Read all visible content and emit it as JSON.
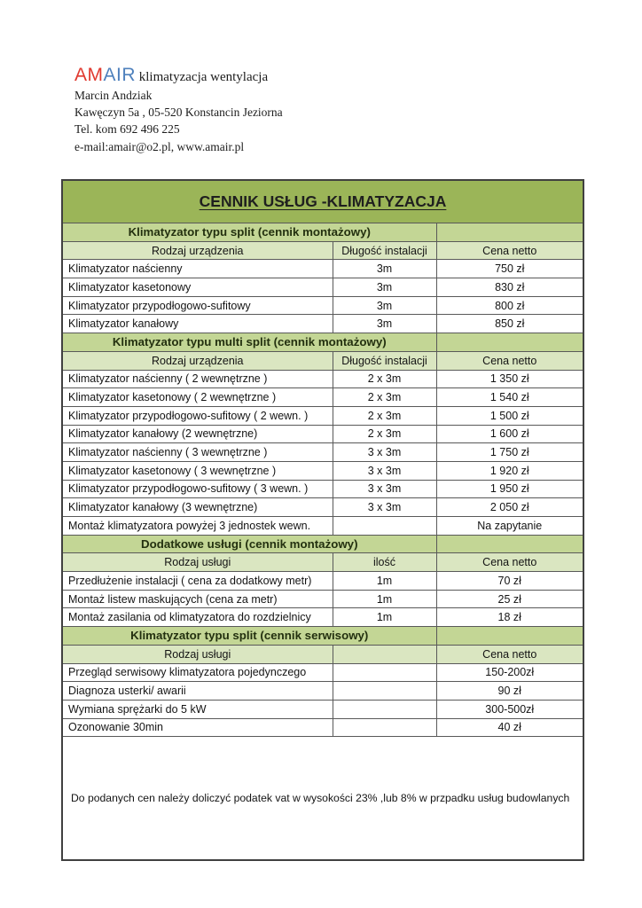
{
  "letterhead": {
    "logo": {
      "part1": "AM",
      "part2": "AIR",
      "suffix": " klimatyzacja wentylacja"
    },
    "lines": [
      "Marcin Andziak",
      "Kawęczyn 5a , 05-520 Konstancin Jeziorna",
      "Tel. kom 692 496 225",
      "e-mail:amair@o2.pl, www.amair.pl"
    ]
  },
  "colors": {
    "logo_red": "#e0392f",
    "logo_blue": "#4f81bd",
    "band_dark_green": "#9bb558",
    "band_section_green": "#c3d695",
    "band_header_green": "#dae6c1",
    "border": "#595959"
  },
  "table": {
    "title": "CENNIK USŁUG -KLIMATYZACJA",
    "sections": [
      {
        "header": "Klimatyzator typu split  (cennik montażowy)",
        "columns": [
          "Rodzaj urządzenia",
          "Długość instalacji",
          "Cena netto"
        ],
        "rows": [
          [
            "Klimatyzator naścienny",
            "3m",
            "750 zł"
          ],
          [
            "Klimatyzator kasetonowy",
            "3m",
            "830 zł"
          ],
          [
            "Klimatyzator przypodłogowo-sufitowy",
            "3m",
            "800 zł"
          ],
          [
            "Klimatyzator kanałowy",
            "3m",
            "850 zł"
          ]
        ]
      },
      {
        "header": "Klimatyzator typu multi split  (cennik montażowy)",
        "columns": [
          "Rodzaj urządzenia",
          "Długość instalacji",
          "Cena netto"
        ],
        "rows": [
          [
            "Klimatyzator naścienny ( 2 wewnętrzne )",
            "2 x 3m",
            "1 350 zł"
          ],
          [
            "Klimatyzator kasetonowy ( 2 wewnętrzne )",
            "2 x 3m",
            "1 540 zł"
          ],
          [
            "Klimatyzator przypodłogowo-sufitowy ( 2 wewn. )",
            "2 x 3m",
            "1 500 zł"
          ],
          [
            "Klimatyzator kanałowy (2 wewnętrzne)",
            "2 x 3m",
            "1 600 zł"
          ],
          [
            "Klimatyzator naścienny ( 3 wewnętrzne  )",
            "3 x 3m",
            "1 750 zł"
          ],
          [
            "Klimatyzator kasetonowy ( 3 wewnętrzne )",
            "3 x 3m",
            "1 920 zł"
          ],
          [
            "Klimatyzator przypodłogowo-sufitowy ( 3 wewn. )",
            "3 x 3m",
            "1 950 zł"
          ],
          [
            "Klimatyzator kanałowy (3 wewnętrzne)",
            "3 x 3m",
            "2 050 zł"
          ],
          [
            "Montaż klimatyzatora powyżej 3 jednostek wewn.",
            "",
            "Na zapytanie"
          ]
        ]
      },
      {
        "header": "Dodatkowe usługi  (cennik montażowy)",
        "columns": [
          "Rodzaj usługi",
          "ilość",
          "Cena netto"
        ],
        "rows": [
          [
            "Przedłużenie instalacji ( cena za dodatkowy metr)",
            "1m",
            "70 zł"
          ],
          [
            "Montaż listew maskujących (cena za metr)",
            "1m",
            "25 zł"
          ],
          [
            "Montaż  zasilania od klimatyzatora do rozdzielnicy",
            "1m",
            "18 zł"
          ]
        ]
      },
      {
        "header": "Klimatyzator typu split  (cennik serwisowy)",
        "columns": [
          "Rodzaj usługi",
          "",
          "Cena netto"
        ],
        "rows": [
          [
            "Przegląd serwisowy klimatyzatora pojedynczego",
            "",
            "150-200zł"
          ],
          [
            "Diagnoza usterki/ awarii",
            "",
            "90 zł"
          ],
          [
            "Wymiana sprężarki do 5 kW",
            "",
            "300-500zł"
          ],
          [
            "Ozonowanie  30min",
            "",
            "40 zł"
          ]
        ]
      }
    ],
    "note": "Do podanych cen należy doliczyć podatek vat w wysokości 23% ,lub 8% w przpadku usług budowlanych"
  }
}
